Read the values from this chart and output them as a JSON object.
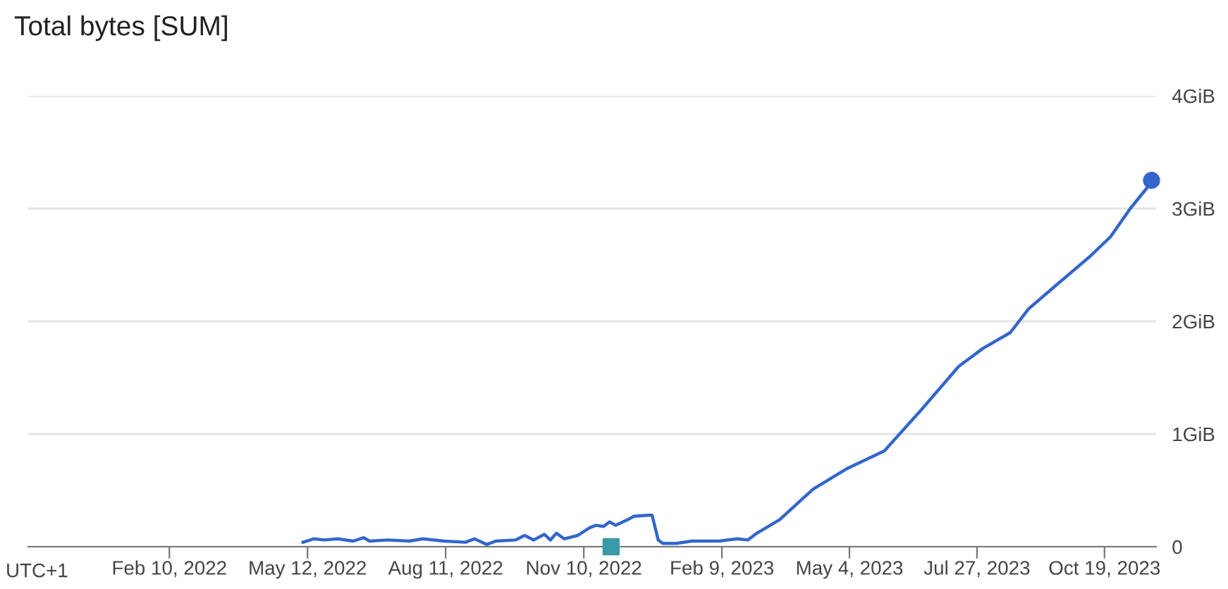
{
  "chart_data": {
    "type": "line",
    "title": "Total bytes [SUM]",
    "annotations": [
      "UTC+1"
    ],
    "series": [
      {
        "color": "#3366cc",
        "x": [
          "2022-05-09",
          "2022-05-16",
          "2022-05-23",
          "2022-06-01",
          "2022-06-11",
          "2022-06-18",
          "2022-06-22",
          "2022-07-04",
          "2022-07-18",
          "2022-07-27",
          "2022-08-10",
          "2022-08-24",
          "2022-08-30",
          "2022-09-07",
          "2022-09-13",
          "2022-09-26",
          "2022-10-02",
          "2022-10-08",
          "2022-10-15",
          "2022-10-19",
          "2022-10-23",
          "2022-10-28",
          "2022-11-06",
          "2022-11-14",
          "2022-11-18",
          "2022-11-23",
          "2022-11-27",
          "2022-12-01",
          "2022-12-09",
          "2022-12-13",
          "2022-12-23",
          "2022-12-25",
          "2022-12-29",
          "2023-01-01",
          "2023-01-10",
          "2023-01-20",
          "2023-02-07",
          "2023-02-19",
          "2023-02-26",
          "2023-03-04",
          "2023-03-19",
          "2023-04-10",
          "2023-05-02",
          "2023-05-27",
          "2023-06-20",
          "2023-07-15",
          "2023-07-31",
          "2023-08-18",
          "2023-08-30",
          "2023-09-18",
          "2023-10-09",
          "2023-10-23",
          "2023-11-05",
          "2023-11-17",
          "2023-11-19"
        ],
        "values": [
          0.04,
          0.07,
          0.06,
          0.07,
          0.05,
          0.08,
          0.05,
          0.06,
          0.05,
          0.07,
          0.05,
          0.04,
          0.07,
          0.02,
          0.05,
          0.06,
          0.1,
          0.06,
          0.11,
          0.06,
          0.12,
          0.07,
          0.1,
          0.17,
          0.19,
          0.18,
          0.22,
          0.19,
          0.24,
          0.27,
          0.28,
          0.28,
          0.06,
          0.03,
          0.03,
          0.05,
          0.05,
          0.07,
          0.06,
          0.12,
          0.24,
          0.51,
          0.69,
          0.85,
          1.21,
          1.6,
          1.76,
          1.9,
          2.11,
          2.33,
          2.57,
          2.75,
          3.0,
          3.2,
          3.25
        ]
      },
      {
        "type": "scatter",
        "color": "#3366cc",
        "marker": "circle",
        "x": [
          "2023-11-19"
        ],
        "values": [
          3.25
        ]
      },
      {
        "type": "scatter",
        "color": "#3a9aa8",
        "marker": "square",
        "x": [
          "2022-11-28"
        ],
        "values": [
          0
        ]
      }
    ],
    "xlim": [
      "2021-11-09",
      "2023-11-22"
    ],
    "xticks": [
      {
        "value": "2022-02-10",
        "label": "Feb 10, 2022"
      },
      {
        "value": "2022-05-12",
        "label": "May 12, 2022"
      },
      {
        "value": "2022-08-11",
        "label": "Aug 11, 2022"
      },
      {
        "value": "2022-11-10",
        "label": "Nov 10, 2022"
      },
      {
        "value": "2023-02-09",
        "label": "Feb 9, 2023"
      },
      {
        "value": "2023-05-04",
        "label": "May 4, 2023"
      },
      {
        "value": "2023-07-27",
        "label": "Jul 27, 2023"
      },
      {
        "value": "2023-10-19",
        "label": "Oct 19, 2023"
      }
    ],
    "ylim": [
      0,
      4
    ],
    "yticks": [
      0,
      {
        "value": 1,
        "label": "1GiB"
      },
      {
        "value": 2,
        "label": "2GiB"
      },
      {
        "value": 3,
        "label": "3GiB"
      },
      {
        "value": 4,
        "label": "4GiB"
      }
    ],
    "grid": "y",
    "legend": false
  }
}
